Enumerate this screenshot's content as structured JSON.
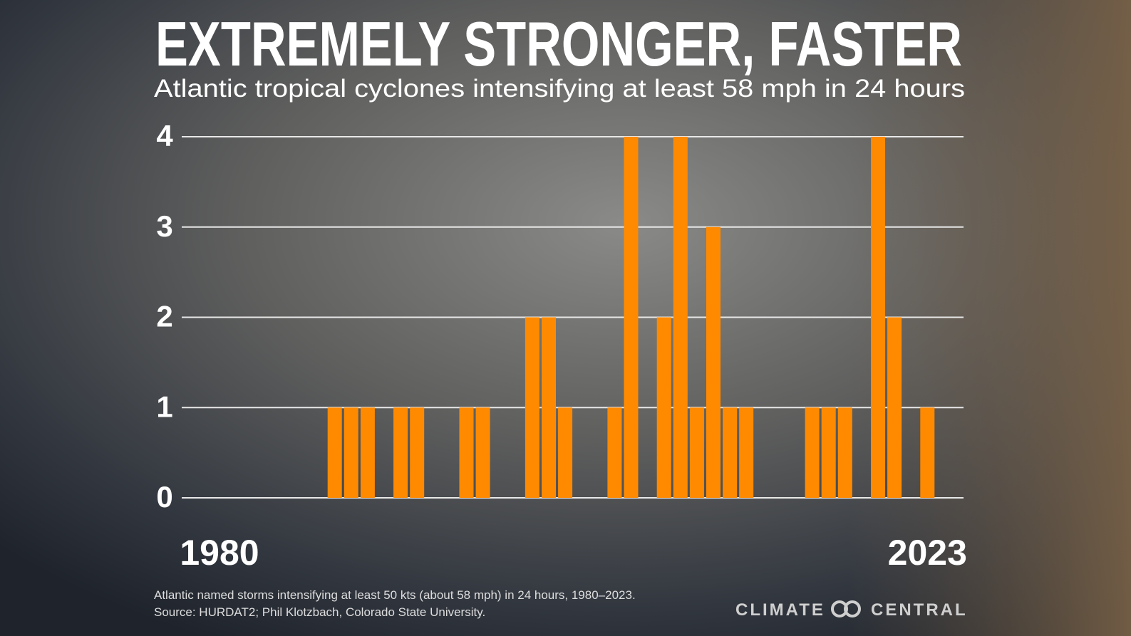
{
  "chart_data": {
    "type": "bar",
    "title": "EXTREMELY STRONGER, FASTER",
    "subtitle": "Atlantic tropical cyclones intensifying at least 58 mph in 24 hours",
    "categories": [
      "1980",
      null,
      null,
      null,
      null,
      null,
      null,
      null,
      null,
      null,
      null,
      null,
      null,
      null,
      null,
      null,
      null,
      null,
      null,
      null,
      null,
      null,
      null,
      null,
      null,
      null,
      null,
      null,
      null,
      null,
      null,
      null,
      null,
      null,
      null,
      null,
      null,
      null,
      null,
      null,
      null,
      null,
      null,
      "2023"
    ],
    "values": [
      0,
      0,
      0,
      0,
      0,
      0,
      0,
      1,
      1,
      1,
      0,
      1,
      1,
      0,
      0,
      1,
      1,
      0,
      0,
      2,
      2,
      1,
      0,
      0,
      1,
      4,
      0,
      2,
      4,
      1,
      3,
      1,
      1,
      0,
      0,
      0,
      1,
      1,
      1,
      0,
      4,
      2,
      0,
      1
    ],
    "color": "#ff8a00",
    "ylim": [
      0,
      4
    ],
    "yticks": [
      0,
      1,
      2,
      3,
      4
    ],
    "grid": true,
    "notes": [
      "Atlantic named storms intensifying at least 50 kts (about 58 mph) in 24 hours, 1980–2023.",
      "Source: HURDAT2; Phil Klotzbach, Colorado State University."
    ],
    "logo": [
      "CLIMATE",
      "CENTRAL"
    ]
  }
}
